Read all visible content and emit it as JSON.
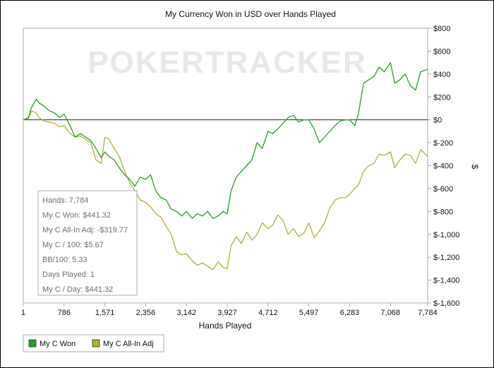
{
  "chart_data": {
    "type": "line",
    "title": "My Currency Won in USD over Hands Played",
    "xlabel": "Hands Played",
    "ylabel": "$",
    "watermark": "POKERTRACKER",
    "xlim": [
      1,
      7784
    ],
    "ylim": [
      -1600,
      800
    ],
    "x_ticks": [
      1,
      786,
      1571,
      2356,
      3142,
      3927,
      4712,
      5497,
      6283,
      7068,
      7784
    ],
    "x_tick_labels": [
      "1",
      "786",
      "1,571",
      "2,356",
      "3,142",
      "3,927",
      "4,712",
      "5,497",
      "6,283",
      "7,068",
      "7,784"
    ],
    "y_ticks": [
      800,
      600,
      400,
      200,
      0,
      -200,
      -400,
      -600,
      -800,
      -1000,
      -1200,
      -1400,
      -1600
    ],
    "y_tick_labels": [
      "$800",
      "$600",
      "$400",
      "$200",
      "$0",
      "$-200",
      "$-400",
      "$-600",
      "$-800",
      "$-1,000",
      "$-1,200",
      "$-1,400",
      "$-1,600"
    ],
    "zero_line": true,
    "legend_position": "bottom-left",
    "series": [
      {
        "name": "My C Won",
        "color": "#22a022",
        "x": [
          1,
          100,
          150,
          250,
          300,
          400,
          500,
          600,
          700,
          786,
          900,
          1000,
          1100,
          1200,
          1300,
          1400,
          1500,
          1571,
          1650,
          1750,
          1850,
          1950,
          2050,
          2150,
          2250,
          2356,
          2450,
          2550,
          2650,
          2750,
          2850,
          2950,
          3050,
          3142,
          3250,
          3350,
          3450,
          3550,
          3650,
          3750,
          3850,
          3927,
          4000,
          4100,
          4200,
          4300,
          4400,
          4500,
          4600,
          4712,
          4800,
          4900,
          5000,
          5100,
          5200,
          5300,
          5400,
          5497,
          5600,
          5700,
          5800,
          5900,
          6000,
          6100,
          6200,
          6283,
          6380,
          6450,
          6550,
          6650,
          6750,
          6850,
          6950,
          7068,
          7150,
          7250,
          7350,
          7450,
          7550,
          7650,
          7784
        ],
        "y": [
          0,
          20,
          100,
          180,
          150,
          120,
          80,
          60,
          20,
          50,
          -50,
          -150,
          -120,
          -150,
          -180,
          -250,
          -330,
          -280,
          -320,
          -350,
          -420,
          -480,
          -520,
          -580,
          -500,
          -520,
          -480,
          -620,
          -680,
          -700,
          -780,
          -800,
          -840,
          -800,
          -860,
          -820,
          -840,
          -800,
          -860,
          -840,
          -800,
          -820,
          -620,
          -500,
          -450,
          -400,
          -350,
          -200,
          -250,
          -100,
          -120,
          -80,
          -30,
          20,
          40,
          -20,
          0,
          0,
          -80,
          -200,
          -150,
          -100,
          -50,
          -10,
          0,
          0,
          -50,
          50,
          320,
          350,
          380,
          460,
          420,
          500,
          320,
          350,
          400,
          300,
          260,
          420,
          441.32
        ]
      },
      {
        "name": "My C All-In Adj",
        "color": "#b0b032",
        "x": [
          1,
          100,
          150,
          250,
          300,
          400,
          500,
          600,
          700,
          786,
          900,
          1000,
          1100,
          1200,
          1300,
          1400,
          1500,
          1571,
          1650,
          1750,
          1850,
          1950,
          2050,
          2150,
          2250,
          2356,
          2450,
          2550,
          2650,
          2750,
          2850,
          2950,
          3050,
          3142,
          3250,
          3350,
          3450,
          3550,
          3650,
          3750,
          3850,
          3927,
          4000,
          4100,
          4200,
          4300,
          4400,
          4500,
          4600,
          4712,
          4800,
          4900,
          5000,
          5100,
          5200,
          5300,
          5400,
          5497,
          5600,
          5700,
          5800,
          5900,
          6000,
          6100,
          6200,
          6283,
          6380,
          6450,
          6550,
          6650,
          6750,
          6850,
          6950,
          7068,
          7150,
          7250,
          7350,
          7450,
          7550,
          7650,
          7784
        ],
        "y": [
          0,
          10,
          80,
          60,
          20,
          -10,
          -20,
          -30,
          -60,
          -50,
          -120,
          -150,
          -140,
          -170,
          -200,
          -350,
          -380,
          -150,
          -170,
          -250,
          -320,
          -450,
          -550,
          -620,
          -700,
          -720,
          -760,
          -820,
          -850,
          -930,
          -1000,
          -1150,
          -1180,
          -1170,
          -1230,
          -1270,
          -1250,
          -1280,
          -1310,
          -1240,
          -1290,
          -1300,
          -1100,
          -1020,
          -1080,
          -980,
          -1050,
          -1000,
          -900,
          -950,
          -920,
          -830,
          -880,
          -1000,
          -950,
          -1020,
          -990,
          -900,
          -1030,
          -970,
          -900,
          -770,
          -700,
          -680,
          -680,
          -650,
          -600,
          -570,
          -450,
          -400,
          -380,
          -300,
          -310,
          -280,
          -420,
          -350,
          -300,
          -310,
          -380,
          -260,
          -319.77
        ]
      }
    ],
    "stats_box": {
      "position": "left",
      "lines": [
        "Hands: 7,784",
        "My C Won: $441.32",
        "My C All-In Adj: -$319.77",
        "My C / 100: $5.67",
        "BB/100: 5.33",
        "Days Played: 1",
        "My C / Day: $441.32"
      ]
    },
    "legend": [
      "My C Won",
      "My C All-In Adj"
    ]
  }
}
